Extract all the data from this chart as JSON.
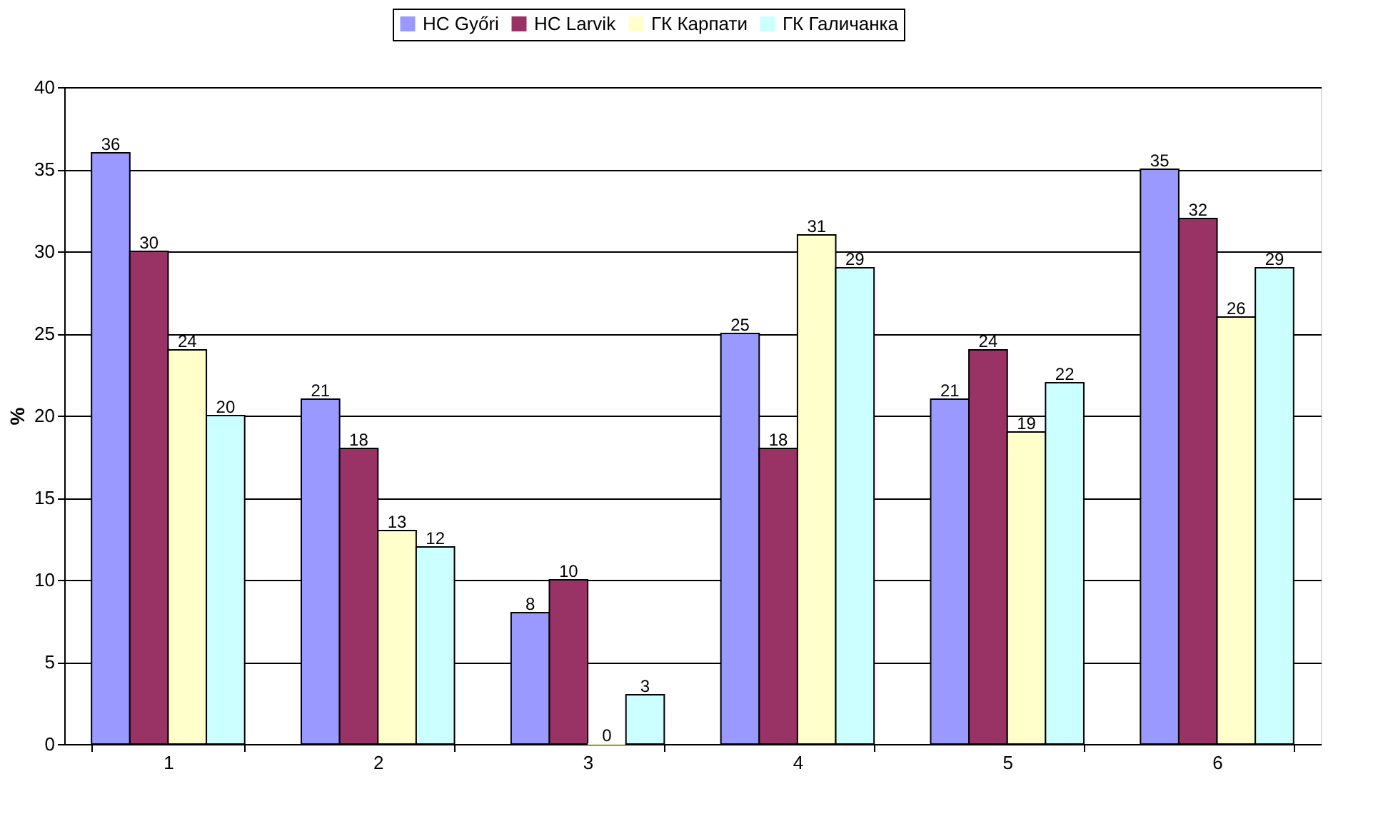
{
  "chart_data": {
    "type": "bar",
    "ylabel": "%",
    "categories": [
      "1",
      "2",
      "3",
      "4",
      "5",
      "6"
    ],
    "series": [
      {
        "name": "HC Győri",
        "color": "#9999ff",
        "values": [
          36,
          21,
          8,
          25,
          21,
          35
        ]
      },
      {
        "name": "HC Larvik",
        "color": "#993366",
        "values": [
          30,
          18,
          10,
          18,
          24,
          32
        ]
      },
      {
        "name": "ГК Карпати",
        "color": "#ffffcc",
        "values": [
          24,
          13,
          0,
          31,
          19,
          26
        ]
      },
      {
        "name": "ГК Галичанка",
        "color": "#ccffff",
        "values": [
          20,
          12,
          3,
          29,
          22,
          29
        ]
      }
    ],
    "ylim": [
      0,
      40
    ],
    "yticks": [
      0,
      5,
      10,
      15,
      20,
      25,
      30,
      35,
      40
    ],
    "grid": "y",
    "legend": "top",
    "data_labels": true
  }
}
